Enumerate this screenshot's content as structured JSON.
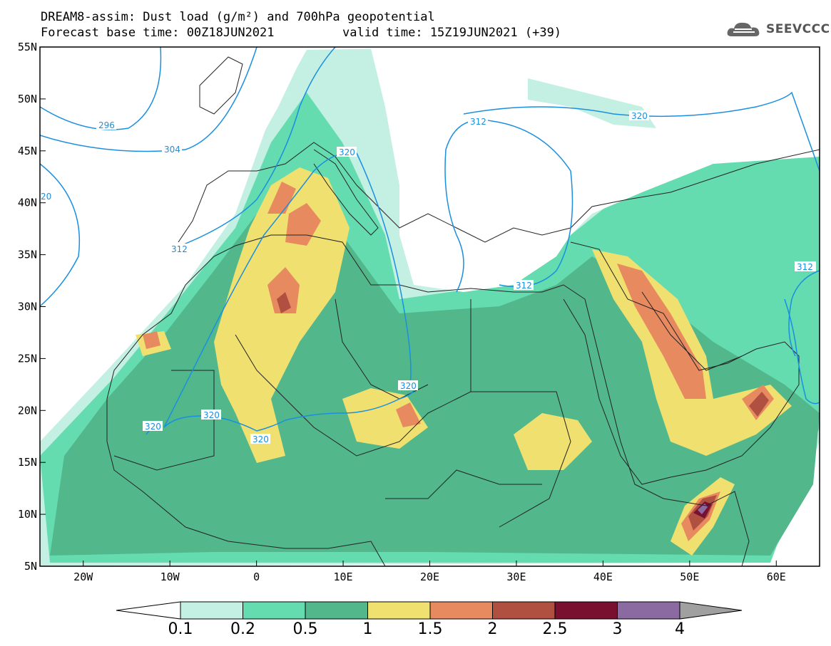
{
  "title": {
    "line1": "DREAM8-assim: Dust load (g/m²) and 700hPa geopotential",
    "line2_base": "Forecast base time: 00Z18JUN2021",
    "line2_valid": "valid time: 15Z19JUN2021 (+39)"
  },
  "logo": {
    "text": "SEEVCCC",
    "icon": "cloud-icon"
  },
  "map": {
    "lon_range": [
      -25,
      65
    ],
    "lat_range": [
      5,
      55
    ],
    "lon_ticks": [
      {
        "lon": -20,
        "label": "20W"
      },
      {
        "lon": -10,
        "label": "10W"
      },
      {
        "lon": 0,
        "label": "0"
      },
      {
        "lon": 10,
        "label": "10E"
      },
      {
        "lon": 20,
        "label": "20E"
      },
      {
        "lon": 30,
        "label": "30E"
      },
      {
        "lon": 40,
        "label": "40E"
      },
      {
        "lon": 50,
        "label": "50E"
      },
      {
        "lon": 60,
        "label": "60E"
      }
    ],
    "lat_ticks": [
      {
        "lat": 55,
        "label": "55N"
      },
      {
        "lat": 50,
        "label": "50N"
      },
      {
        "lat": 45,
        "label": "45N"
      },
      {
        "lat": 40,
        "label": "40N"
      },
      {
        "lat": 35,
        "label": "35N"
      },
      {
        "lat": 30,
        "label": "30N"
      },
      {
        "lat": 25,
        "label": "25N"
      },
      {
        "lat": 20,
        "label": "20N"
      },
      {
        "lat": 15,
        "label": "15N"
      },
      {
        "lat": 10,
        "label": "10N"
      },
      {
        "lat": 5,
        "label": "5N"
      }
    ],
    "contour_labels": [
      "296",
      "304",
      "312",
      "320",
      "20"
    ],
    "colors": {
      "c01": "#c4f0e4",
      "c02": "#64dcb0",
      "c05": "#52b88c",
      "c1": "#f0e070",
      "c15": "#e88a60",
      "c2": "#b05040",
      "c25": "#7a1030",
      "c3": "#8a6aa0",
      "c4": "#a0a0a0",
      "contour": "#1a8fe0"
    }
  },
  "colorbar": {
    "labels": [
      "0.1",
      "0.2",
      "0.5",
      "1",
      "1.5",
      "2",
      "2.5",
      "3",
      "4"
    ],
    "colors": [
      "#c4f0e4",
      "#64dcb0",
      "#52b88c",
      "#f0e070",
      "#e88a60",
      "#b05040",
      "#7a1030",
      "#8a6aa0"
    ],
    "under_color": "#ffffff",
    "over_color": "#a0a0a0"
  }
}
